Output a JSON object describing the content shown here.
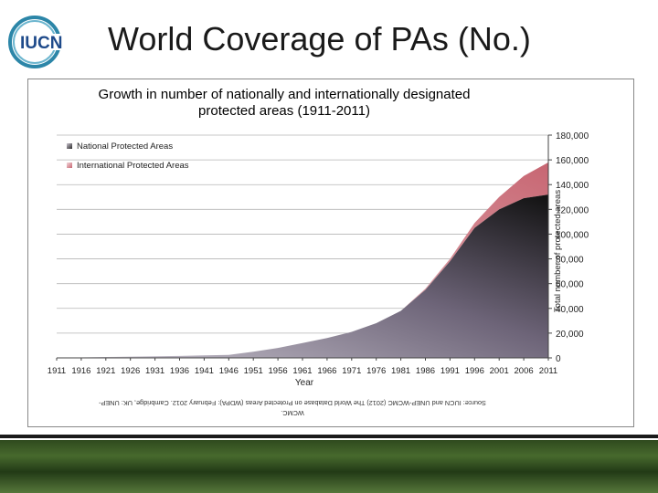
{
  "header": {
    "logo_text": "IUCN",
    "title": "World Coverage of PAs (No.)"
  },
  "chart_data": {
    "type": "area",
    "stacked": true,
    "title": "Growth in number of nationally and internationally designated protected areas (1911-2011)",
    "title_lines": [
      "Growth in number of nationally and internationally designated",
      "protected areas (1911-2011)"
    ],
    "xlabel": "Year",
    "ylabel": "Total number of protected areas",
    "x": [
      1911,
      1916,
      1921,
      1926,
      1931,
      1936,
      1941,
      1946,
      1951,
      1956,
      1961,
      1966,
      1971,
      1976,
      1981,
      1986,
      1991,
      1996,
      2001,
      2006,
      2011
    ],
    "xticks": [
      "1911",
      "1916",
      "1921",
      "1926",
      "1931",
      "1936",
      "1941",
      "1946",
      "1951",
      "1956",
      "1961",
      "1966",
      "1971",
      "1976",
      "1981",
      "1986",
      "1991",
      "1996",
      "2001",
      "2006",
      "2011"
    ],
    "ylim": [
      0,
      180000
    ],
    "yticks": [
      "0",
      "20,000",
      "40,000",
      "60,000",
      "80,000",
      "100,000",
      "120,000",
      "140,000",
      "160,000",
      "180,000"
    ],
    "grid": true,
    "y_axis_position": "right",
    "legend_position": "top-left",
    "series": [
      {
        "name": "National Protected Areas",
        "color": "#5f5866",
        "values": [
          200,
          400,
          700,
          1000,
          1300,
          1600,
          2000,
          2400,
          5000,
          8000,
          12000,
          16000,
          21000,
          28000,
          38000,
          55000,
          78000,
          105000,
          120000,
          129000,
          132000
        ]
      },
      {
        "name": "International Protected Areas",
        "color": "#d98c95",
        "values": [
          0,
          0,
          0,
          0,
          0,
          0,
          0,
          0,
          0,
          0,
          0,
          0,
          0,
          0,
          0,
          1000,
          2000,
          4000,
          10000,
          18000,
          26000
        ]
      }
    ]
  },
  "source": {
    "lines": [
      "Source: IUCN and UNEP-WCMC (2012) The World Database on Protected Areas (WDPA): February 2012. Cambridge, UK: UNEP-",
      "WCMC."
    ]
  }
}
